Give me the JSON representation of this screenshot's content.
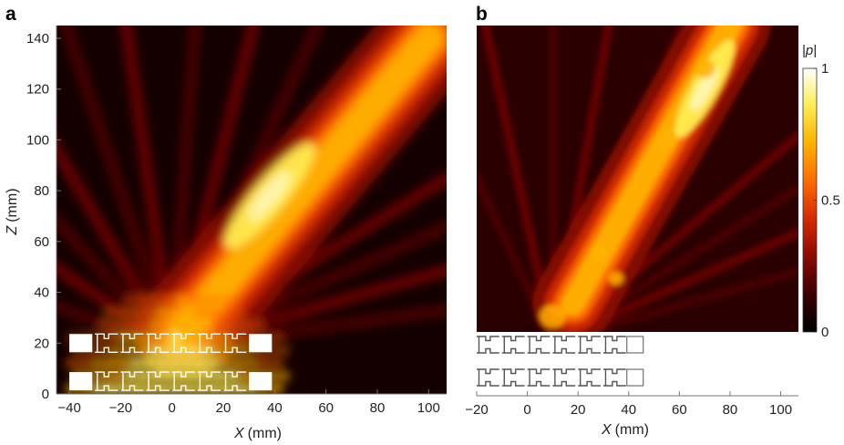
{
  "panel_a": {
    "label": "a",
    "xlabel_italic": "X",
    "xlabel_unit": "(mm)",
    "ylabel_italic": "Z",
    "ylabel_unit": "(mm)"
  },
  "panel_b": {
    "label": "b",
    "xlabel_italic": "X",
    "xlabel_unit": "(mm)"
  },
  "colorbar": {
    "title": "|p|",
    "ticks": [
      "1",
      "0.5",
      "0"
    ]
  },
  "colors": {
    "colormap": [
      "#000000",
      "#3a0000",
      "#8a0a00",
      "#d42a00",
      "#ff6a00",
      "#ffb000",
      "#ffec50",
      "#ffffff"
    ],
    "structure_fill": "#ffffff",
    "structure_outline": "#555555"
  },
  "chart_data": [
    {
      "type": "heatmap",
      "panel": "a",
      "quantity": "|p|",
      "xlim": [
        -45,
        107
      ],
      "ylim": [
        0,
        145
      ],
      "xticks": [
        -40,
        -20,
        0,
        20,
        40,
        60,
        80,
        100
      ],
      "xtick_labels": [
        "−40",
        "−20",
        "0",
        "20",
        "40",
        "60",
        "80",
        "100"
      ],
      "yticks": [
        0,
        20,
        40,
        60,
        80,
        100,
        120,
        140
      ],
      "ytick_labels": [
        "0",
        "20",
        "40",
        "60",
        "80",
        "100",
        "120",
        "140"
      ],
      "color_range": [
        0,
        1
      ],
      "beam": {
        "from_xy": [
          5,
          25
        ],
        "to_xy": [
          100,
          140
        ],
        "peak_xy": [
          38,
          78
        ],
        "width_mm": 12
      },
      "structure_rows_z": [
        5,
        20
      ],
      "structure_x_range": [
        -40,
        40
      ]
    },
    {
      "type": "heatmap",
      "panel": "b",
      "quantity": "|p|",
      "xlim": [
        -20,
        107
      ],
      "ylim": [
        20,
        145
      ],
      "xticks": [
        -20,
        0,
        20,
        40,
        60,
        80,
        100
      ],
      "xtick_labels": [
        "−20",
        "0",
        "20",
        "40",
        "60",
        "80",
        "100"
      ],
      "color_range": [
        0,
        1
      ],
      "beam": {
        "from_xy": [
          18,
          35
        ],
        "to_xy": [
          80,
          145
        ],
        "peak_xy": [
          70,
          120
        ],
        "width_mm": 10
      },
      "structure_rows_z": [
        5,
        20
      ],
      "structure_x_range": [
        -20,
        40
      ]
    }
  ]
}
